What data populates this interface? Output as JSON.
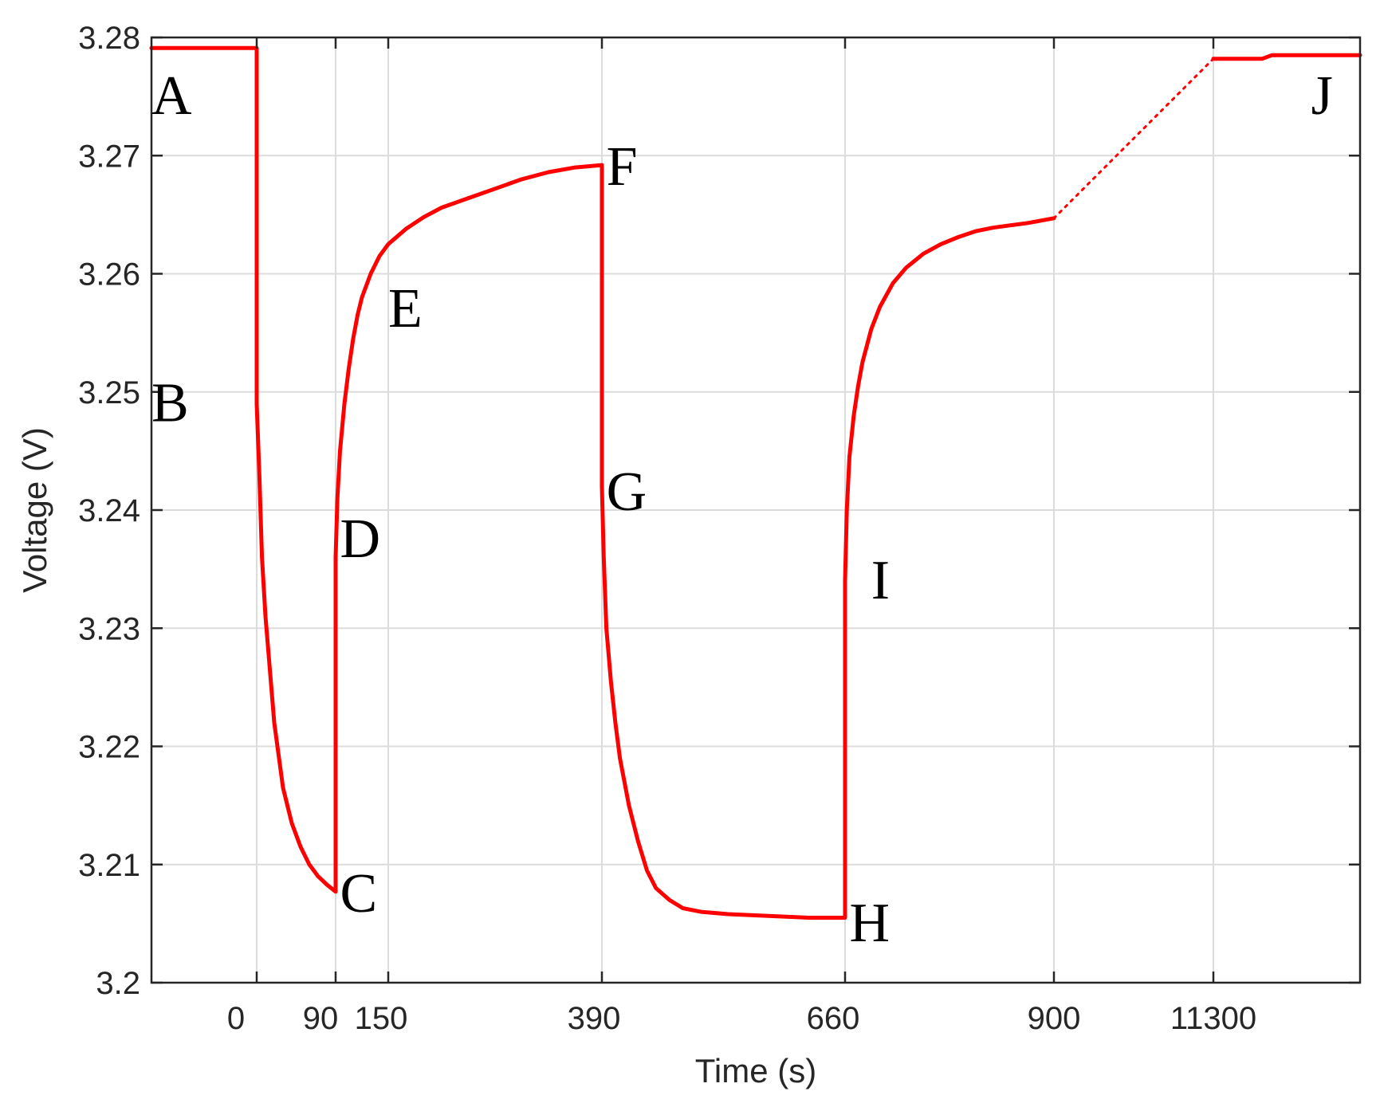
{
  "chart_data": {
    "type": "line",
    "title": "",
    "xlabel": "Time (s)",
    "ylabel": "Voltage (V)",
    "ylim": [
      3.2,
      3.28
    ],
    "yticks": [
      3.2,
      3.21,
      3.22,
      3.23,
      3.24,
      3.25,
      3.26,
      3.27,
      3.28
    ],
    "xticks": [
      "0",
      "90",
      "150",
      "390",
      "660",
      "900",
      "11300"
    ],
    "grid": true,
    "legend": "none",
    "line_color": "#ff0000",
    "note": "Time axis is piecewise (non-linear): the gap between 900 s and 11300 s is bridged by a dotted segment.",
    "series": [
      {
        "style": "solid",
        "points": [
          [
            -25,
            3.2791
          ],
          [
            0,
            3.2791
          ],
          [
            0,
            3.249
          ],
          [
            3,
            3.243
          ],
          [
            6,
            3.236
          ],
          [
            10,
            3.231
          ],
          [
            15,
            3.2265
          ],
          [
            20,
            3.222
          ],
          [
            30,
            3.2165
          ],
          [
            40,
            3.2135
          ],
          [
            50,
            3.2115
          ],
          [
            60,
            3.21
          ],
          [
            70,
            3.209
          ],
          [
            80,
            3.2083
          ],
          [
            90,
            3.2077
          ],
          [
            90,
            3.236
          ],
          [
            92,
            3.241
          ],
          [
            95,
            3.245
          ],
          [
            100,
            3.249
          ],
          [
            105,
            3.252
          ],
          [
            110,
            3.2545
          ],
          [
            115,
            3.2565
          ],
          [
            120,
            3.258
          ],
          [
            130,
            3.26
          ],
          [
            140,
            3.2615
          ],
          [
            150,
            3.2625
          ],
          [
            170,
            3.2638
          ],
          [
            190,
            3.2648
          ],
          [
            210,
            3.2656
          ],
          [
            240,
            3.2664
          ],
          [
            270,
            3.2672
          ],
          [
            300,
            3.268
          ],
          [
            330,
            3.2686
          ],
          [
            360,
            3.269
          ],
          [
            390,
            3.2692
          ],
          [
            390,
            3.242
          ],
          [
            392,
            3.236
          ],
          [
            395,
            3.23
          ],
          [
            400,
            3.2255
          ],
          [
            405,
            3.222
          ],
          [
            410,
            3.219
          ],
          [
            420,
            3.215
          ],
          [
            430,
            3.212
          ],
          [
            440,
            3.2095
          ],
          [
            450,
            3.208
          ],
          [
            465,
            3.207
          ],
          [
            480,
            3.2063
          ],
          [
            500,
            3.206
          ],
          [
            530,
            3.2058
          ],
          [
            560,
            3.2057
          ],
          [
            590,
            3.2056
          ],
          [
            620,
            3.2055
          ],
          [
            660,
            3.2055
          ],
          [
            660,
            3.234
          ],
          [
            662,
            3.24
          ],
          [
            665,
            3.2445
          ],
          [
            670,
            3.248
          ],
          [
            675,
            3.2505
          ],
          [
            680,
            3.2525
          ],
          [
            690,
            3.2553
          ],
          [
            700,
            3.2572
          ],
          [
            715,
            3.2592
          ],
          [
            730,
            3.2605
          ],
          [
            750,
            3.2617
          ],
          [
            770,
            3.2625
          ],
          [
            790,
            3.2631
          ],
          [
            810,
            3.2636
          ],
          [
            830,
            3.2639
          ],
          [
            850,
            3.2641
          ],
          [
            870,
            3.2643
          ],
          [
            900,
            3.2647
          ]
        ]
      },
      {
        "style": "dotted",
        "points": [
          [
            900,
            3.2647
          ],
          [
            11300,
            3.2782
          ]
        ]
      },
      {
        "style": "solid",
        "points": [
          [
            11300,
            3.2782
          ],
          [
            11400,
            3.2782
          ],
          [
            11420,
            3.2785
          ],
          [
            11600,
            3.2785
          ]
        ]
      }
    ],
    "annotations": [
      {
        "text": "A",
        "x": -25,
        "y": 3.275
      },
      {
        "text": "B",
        "x": -25,
        "y": 3.249
      },
      {
        "text": "C",
        "x": 95,
        "y": 3.2075
      },
      {
        "text": "D",
        "x": 95,
        "y": 3.2375
      },
      {
        "text": "E",
        "x": 150,
        "y": 3.257
      },
      {
        "text": "F",
        "x": 395,
        "y": 3.269
      },
      {
        "text": "G",
        "x": 395,
        "y": 3.2415
      },
      {
        "text": "H",
        "x": 665,
        "y": 3.205
      },
      {
        "text": "I",
        "x": 690,
        "y": 3.234
      },
      {
        "text": "J",
        "x": 11500,
        "y": 3.275
      }
    ]
  }
}
